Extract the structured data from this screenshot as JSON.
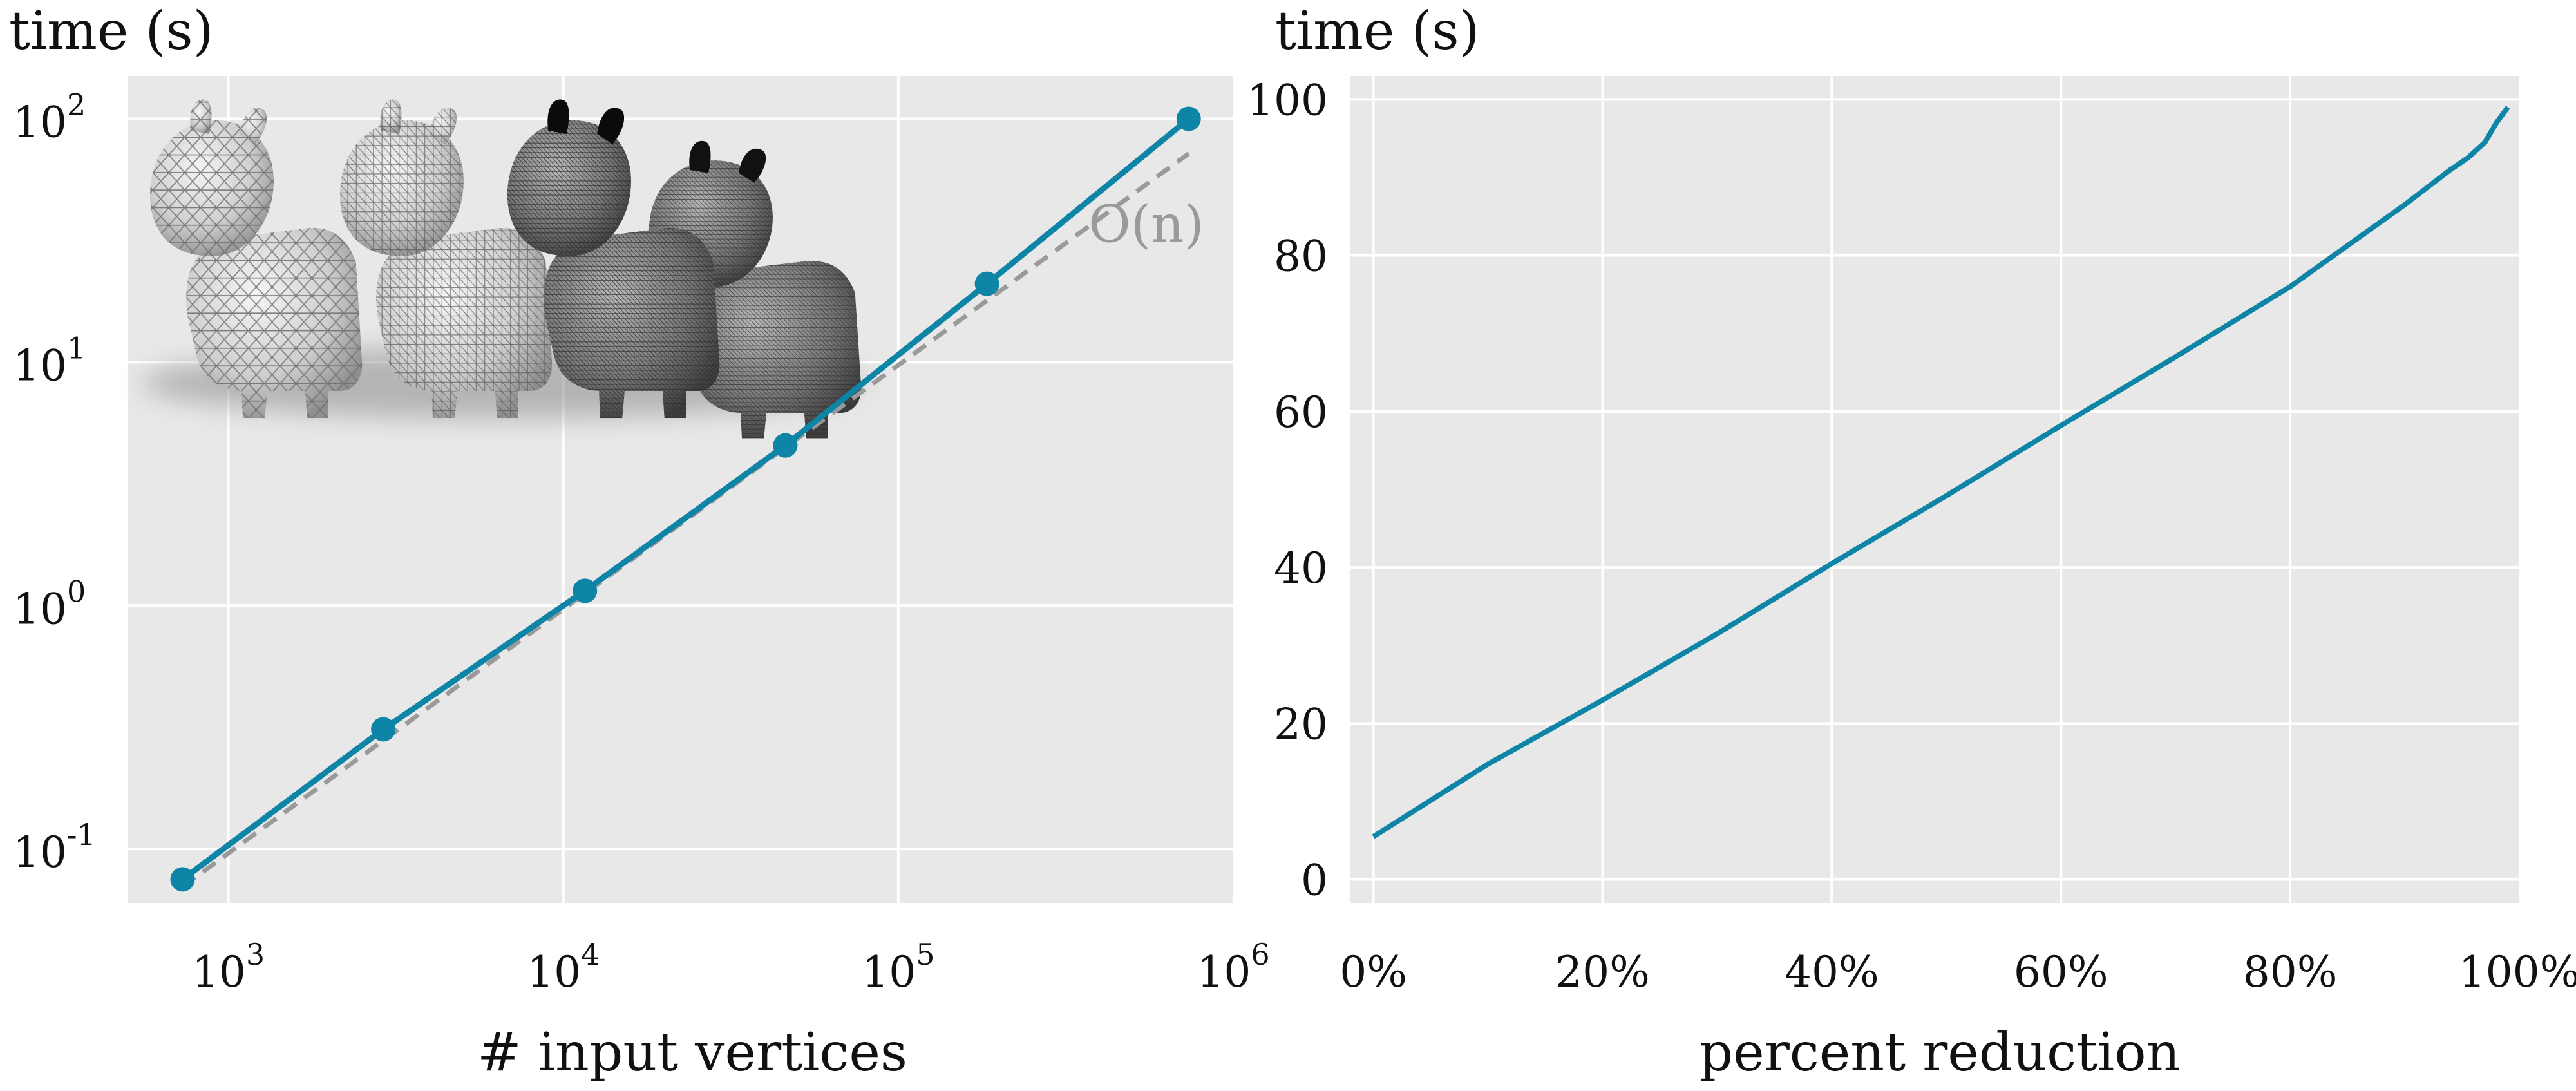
{
  "colors": {
    "panel_bg": "#e8e8e8",
    "grid": "#ffffff",
    "series": "#0e85a6",
    "reference": "#9a9a9a",
    "text": "#111111"
  },
  "chart_data": [
    {
      "type": "line",
      "xscale": "log",
      "yscale": "log",
      "ylabel": "time (s)",
      "xlabel": "# input vertices",
      "xlim": [
        500,
        1000000
      ],
      "ylim": [
        0.06,
        150
      ],
      "x_ticks": [
        {
          "base": "10",
          "exp": "3",
          "value": 1000
        },
        {
          "base": "10",
          "exp": "4",
          "value": 10000
        },
        {
          "base": "10",
          "exp": "5",
          "value": 100000
        },
        {
          "base": "10",
          "exp": "6",
          "value": 1000000
        }
      ],
      "y_ticks": [
        {
          "base": "10",
          "exp": "-1",
          "value": 0.1
        },
        {
          "base": "10",
          "exp": "0",
          "value": 1
        },
        {
          "base": "10",
          "exp": "1",
          "value": 10
        },
        {
          "base": "10",
          "exp": "2",
          "value": 100
        }
      ],
      "grid": true,
      "series": [
        {
          "style": "solid-with-markers",
          "color": "#0e85a6",
          "x": [
            730,
            2900,
            11600,
            46000,
            184000,
            736000
          ],
          "y": [
            0.075,
            0.31,
            1.15,
            4.55,
            21.0,
            100.0
          ]
        },
        {
          "name": "O(n)",
          "style": "dashed",
          "color": "#9a9a9a",
          "x": [
            730,
            736000
          ],
          "y": [
            0.07,
            72
          ]
        }
      ],
      "annotations": [
        {
          "text": "O(n)",
          "x": 550000,
          "y": 37
        }
      ],
      "inset_image": "three-cow-meshes-at-increasing-resolution"
    },
    {
      "type": "line",
      "ylabel": "time (s)",
      "xlabel": "percent reduction",
      "xlim": [
        -2,
        100
      ],
      "ylim": [
        -3,
        103
      ],
      "x_ticks": [
        "0%",
        "20%",
        "40%",
        "60%",
        "80%",
        "100%"
      ],
      "x_tick_values": [
        0,
        20,
        40,
        60,
        80,
        100
      ],
      "y_ticks": [
        "0",
        "20",
        "40",
        "60",
        "80",
        "100"
      ],
      "y_tick_values": [
        0,
        20,
        40,
        60,
        80,
        100
      ],
      "grid": true,
      "series": [
        {
          "style": "solid",
          "color": "#0e85a6",
          "x": [
            0,
            10,
            20,
            30,
            40,
            50,
            60,
            70,
            80,
            90,
            94,
            95.5,
            97,
            98,
            99
          ],
          "y": [
            5.5,
            14.8,
            23.0,
            31.5,
            40.5,
            49.2,
            58.2,
            67.0,
            76.0,
            86.5,
            91.0,
            92.5,
            94.5,
            97.0,
            99.0
          ]
        }
      ]
    }
  ]
}
